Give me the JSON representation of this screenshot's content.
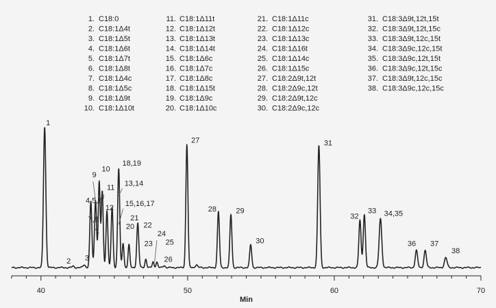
{
  "chart_data": {
    "type": "line",
    "title": "",
    "xlabel": "Min",
    "ylabel": "",
    "xlim": [
      38,
      70
    ],
    "ylim": [
      0,
      1.0
    ],
    "x_ticks": [
      40,
      50,
      60,
      70
    ],
    "grid": false,
    "legend_position": "top",
    "legend": [
      {
        "num": "1.",
        "name": "C18:0"
      },
      {
        "num": "2.",
        "name": "C18:1Δ4t"
      },
      {
        "num": "3.",
        "name": "C18:1Δ5t"
      },
      {
        "num": "4.",
        "name": "C18:1Δ6t"
      },
      {
        "num": "5.",
        "name": "C18:1Δ7t"
      },
      {
        "num": "6.",
        "name": "C18:1Δ8t"
      },
      {
        "num": "7.",
        "name": "C18:1Δ4c"
      },
      {
        "num": "8.",
        "name": "C18:1Δ5c"
      },
      {
        "num": "9.",
        "name": "C18:1Δ9t"
      },
      {
        "num": "10.",
        "name": "C18:1Δ10t"
      },
      {
        "num": "11.",
        "name": "C18:1Δ11t"
      },
      {
        "num": "12.",
        "name": "C18:1Δ12t"
      },
      {
        "num": "13.",
        "name": "C18:1Δ13t"
      },
      {
        "num": "14.",
        "name": "C18:1Δ14t"
      },
      {
        "num": "15.",
        "name": "C18:1Δ6c"
      },
      {
        "num": "16.",
        "name": "C18:1Δ7c"
      },
      {
        "num": "17.",
        "name": "C18:1Δ8c"
      },
      {
        "num": "18.",
        "name": "C18:1Δ15t"
      },
      {
        "num": "19.",
        "name": "C18:1Δ9c"
      },
      {
        "num": "20.",
        "name": "C18:1Δ10c"
      },
      {
        "num": "21.",
        "name": "C18:1Δ11c"
      },
      {
        "num": "22.",
        "name": "C18:1Δ12c"
      },
      {
        "num": "23.",
        "name": "C18:1Δ13c"
      },
      {
        "num": "24.",
        "name": "C18:1Δ16t"
      },
      {
        "num": "25.",
        "name": "C18:1Δ14c"
      },
      {
        "num": "26.",
        "name": "C18:1Δ15c"
      },
      {
        "num": "27.",
        "name": "C18:2Δ9t,12t"
      },
      {
        "num": "28.",
        "name": "C18:2Δ9c,12t"
      },
      {
        "num": "29.",
        "name": "C18:2Δ9t,12c"
      },
      {
        "num": "30.",
        "name": "C18:2Δ9c,12c"
      },
      {
        "num": "31.",
        "name": "C18:3Δ9t,12t,15t"
      },
      {
        "num": "32.",
        "name": "C18:3Δ9t,12t,15c"
      },
      {
        "num": "33.",
        "name": "C18:3Δ9t,12c,15t"
      },
      {
        "num": "34.",
        "name": "C18:3Δ9c,12c,15t"
      },
      {
        "num": "35.",
        "name": "C18:3Δ9c,12t,15t"
      },
      {
        "num": "36.",
        "name": "C18:3Δ9c,12t,15c"
      },
      {
        "num": "37.",
        "name": "C18:3Δ9t,12c,15c"
      },
      {
        "num": "38.",
        "name": "C18:3Δ9c,12c,15c"
      }
    ],
    "peaks": [
      {
        "t": 40.25,
        "h": 0.98,
        "w": 0.08
      },
      {
        "t": 42.2,
        "h": 0.01,
        "w": 0.07
      },
      {
        "t": 42.95,
        "h": 0.02,
        "w": 0.08
      },
      {
        "t": 43.4,
        "h": 0.46,
        "w": 0.07
      },
      {
        "t": 43.72,
        "h": 0.47,
        "w": 0.07
      },
      {
        "t": 43.97,
        "h": 0.6,
        "w": 0.065
      },
      {
        "t": 44.18,
        "h": 0.53,
        "w": 0.065
      },
      {
        "t": 44.5,
        "h": 0.4,
        "w": 0.065
      },
      {
        "t": 44.85,
        "h": 0.42,
        "w": 0.065
      },
      {
        "t": 45.3,
        "h": 0.69,
        "w": 0.07
      },
      {
        "t": 45.6,
        "h": 0.17,
        "w": 0.06
      },
      {
        "t": 46.0,
        "h": 0.16,
        "w": 0.06
      },
      {
        "t": 46.6,
        "h": 0.31,
        "w": 0.07
      },
      {
        "t": 47.15,
        "h": 0.06,
        "w": 0.06
      },
      {
        "t": 47.65,
        "h": 0.04,
        "w": 0.06
      },
      {
        "t": 47.9,
        "h": 0.04,
        "w": 0.06
      },
      {
        "t": 48.4,
        "h": 0.015,
        "w": 0.07
      },
      {
        "t": 49.95,
        "h": 0.86,
        "w": 0.07
      },
      {
        "t": 50.6,
        "h": 0.02,
        "w": 0.08
      },
      {
        "t": 52.1,
        "h": 0.39,
        "w": 0.07
      },
      {
        "t": 52.95,
        "h": 0.37,
        "w": 0.07
      },
      {
        "t": 54.3,
        "h": 0.16,
        "w": 0.07
      },
      {
        "t": 58.95,
        "h": 0.85,
        "w": 0.08
      },
      {
        "t": 61.75,
        "h": 0.33,
        "w": 0.075
      },
      {
        "t": 62.05,
        "h": 0.37,
        "w": 0.075
      },
      {
        "t": 63.15,
        "h": 0.34,
        "w": 0.09
      },
      {
        "t": 65.6,
        "h": 0.12,
        "w": 0.08
      },
      {
        "t": 66.2,
        "h": 0.12,
        "w": 0.08
      },
      {
        "t": 67.6,
        "h": 0.07,
        "w": 0.09
      }
    ],
    "peak_labels": [
      {
        "text": "1",
        "t": 40.25,
        "h": 0.98
      },
      {
        "text": "2",
        "t": 41.65,
        "h": 0.02
      },
      {
        "text": "3",
        "t": 42.9,
        "h": 0.04
      },
      {
        "text": "4,5,6",
        "t": 42.95,
        "h": 0.44
      },
      {
        "text": "7,8",
        "t": 43.12,
        "h": 0.31
      },
      {
        "text": "9",
        "t": 43.4,
        "h": 0.62
      },
      {
        "text": "10",
        "t": 44.05,
        "h": 0.66
      },
      {
        "text": "11",
        "t": 44.4,
        "h": 0.53
      },
      {
        "text": "12",
        "t": 44.3,
        "h": 0.39
      },
      {
        "text": "18,19",
        "t": 45.45,
        "h": 0.7
      },
      {
        "text": "13,14",
        "t": 45.6,
        "h": 0.56
      },
      {
        "text": "15,16,17",
        "t": 45.65,
        "h": 0.42
      },
      {
        "text": "20",
        "t": 45.7,
        "h": 0.26
      },
      {
        "text": "21",
        "t": 46.0,
        "h": 0.32
      },
      {
        "text": "22",
        "t": 46.9,
        "h": 0.27
      },
      {
        "text": "23",
        "t": 46.95,
        "h": 0.14
      },
      {
        "text": "24",
        "t": 47.85,
        "h": 0.21
      },
      {
        "text": "25",
        "t": 48.4,
        "h": 0.15
      },
      {
        "text": "26",
        "t": 48.3,
        "h": 0.03
      },
      {
        "text": "27",
        "t": 50.15,
        "h": 0.86
      },
      {
        "text": "28",
        "t": 51.3,
        "h": 0.38
      },
      {
        "text": "29",
        "t": 53.2,
        "h": 0.37
      },
      {
        "text": "30",
        "t": 54.55,
        "h": 0.16
      },
      {
        "text": "31",
        "t": 59.2,
        "h": 0.84
      },
      {
        "text": "32",
        "t": 61.0,
        "h": 0.33
      },
      {
        "text": "33",
        "t": 62.2,
        "h": 0.37
      },
      {
        "text": "34,35",
        "t": 63.3,
        "h": 0.35
      },
      {
        "text": "36",
        "t": 64.9,
        "h": 0.14
      },
      {
        "text": "37",
        "t": 66.45,
        "h": 0.14
      },
      {
        "text": "38",
        "t": 67.9,
        "h": 0.09
      }
    ],
    "leader_lines": [
      {
        "from_t": 43.55,
        "from_h": 0.6,
        "to_t": 43.72,
        "to_h": 0.47
      },
      {
        "from_t": 43.6,
        "from_h": 0.28,
        "to_t": 43.95,
        "to_h": 0.24
      },
      {
        "from_t": 44.3,
        "from_h": 0.51,
        "to_t": 44.18,
        "to_h": 0.44
      },
      {
        "from_t": 45.55,
        "from_h": 0.55,
        "to_t": 45.3,
        "to_h": 0.5
      },
      {
        "from_t": 45.6,
        "from_h": 0.41,
        "to_t": 45.3,
        "to_h": 0.3
      },
      {
        "from_t": 47.9,
        "from_h": 0.19,
        "to_t": 47.75,
        "to_h": 0.04
      }
    ]
  }
}
